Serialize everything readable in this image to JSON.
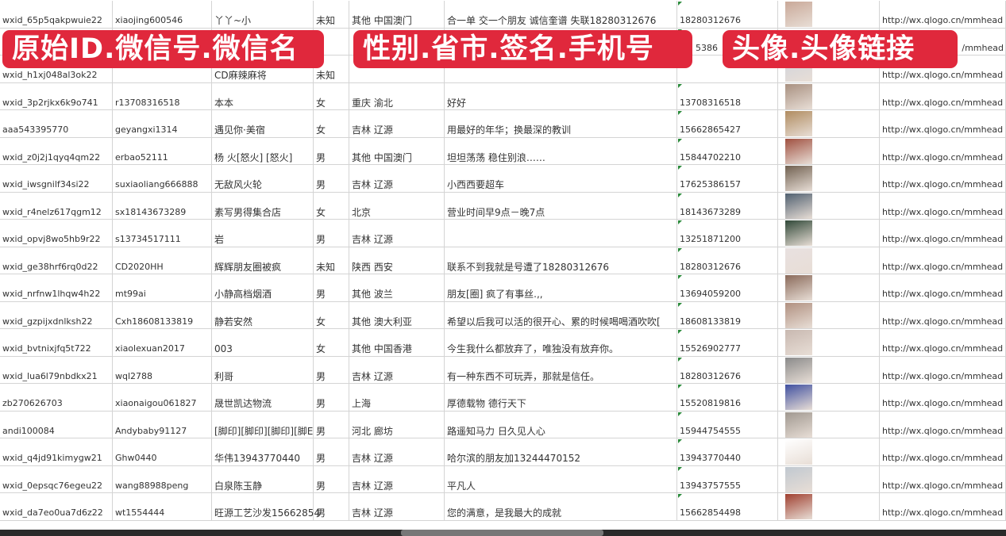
{
  "banners": [
    "原始ID.微信号.微信名",
    "性别.省市.签名.手机号",
    "头像.头像链接"
  ],
  "colors": {
    "banner": "#e0283c",
    "grid": "#d4d4d4",
    "marker": "#2a8a3a"
  },
  "rows": [
    [
      "wxid_65p5qakpwuie22",
      "xiaojing600546",
      "丫丫~小",
      "未知",
      "其他 中国澳门",
      "合一单 交一个朋友 诚信奎谱 失联18280312676",
      "18280312676",
      "http://wx.qlogo.cn/mmhead"
    ],
    [
      "",
      "",
      "",
      "",
      "",
      "",
      "5386",
      "/mmhead"
    ],
    [
      "wxid_h1xj048al3ok22",
      "",
      "CD麻辣麻将",
      "未知",
      "",
      "",
      "",
      "http://wx.qlogo.cn/mmhead"
    ],
    [
      "wxid_3p2rjkx6k9o741",
      "r13708316518",
      "本本",
      "女",
      "重庆 渝北",
      "好好",
      "13708316518",
      "http://wx.qlogo.cn/mmhead"
    ],
    [
      "aaa543395770",
      "geyangxi1314",
      "遇见你·美宿",
      "女",
      "吉林 辽源",
      "用最好的年华；换最深的教训",
      "15662865427",
      "http://wx.qlogo.cn/mmhead"
    ],
    [
      "wxid_z0j2j1qyq4qm22",
      "erbao52111",
      "杨 火[怒火] [怒火]",
      "男",
      "其他 中国澳门",
      "坦坦荡荡 稳住别浪……",
      "15844702210",
      "http://wx.qlogo.cn/mmhead"
    ],
    [
      "wxid_iwsgnilf34si22",
      "suxiaoliang666888",
      "无敌风火轮",
      "男",
      "吉林 辽源",
      "小西西要超车",
      "17625386157",
      "http://wx.qlogo.cn/mmhead"
    ],
    [
      "wxid_r4nelz617qgm12",
      "sx18143673289",
      "素写男得集合店",
      "女",
      "北京",
      "营业时间早9点－晚7点",
      "18143673289",
      "http://wx.qlogo.cn/mmhead"
    ],
    [
      "wxid_opvj8wo5hb9r22",
      "s13734517111",
      "岩",
      "男",
      "吉林 辽源",
      "",
      "13251871200",
      "http://wx.qlogo.cn/mmhead"
    ],
    [
      "wxid_ge38hrf6rq0d22",
      "CD2020HH",
      "辉辉朋友圈被疯",
      "未知",
      "陕西 西安",
      "联系不到我就是号遭了18280312676",
      "18280312676",
      "http://wx.qlogo.cn/mmhead"
    ],
    [
      "wxid_nrfnw1lhqw4h22",
      "mt99ai",
      "小静高档烟酒",
      "男",
      "其他 波兰",
      "朋友[圈] 疯了有事丝.,,",
      "13694059200",
      "http://wx.qlogo.cn/mmhead"
    ],
    [
      "wxid_gzpijxdnlksh22",
      "Cxh18608133819",
      "静若安然",
      "女",
      "其他 澳大利亚",
      "希望以后我可以活的很开心、累的时候喝喝酒吹吹[",
      "18608133819",
      "http://wx.qlogo.cn/mmhead"
    ],
    [
      "wxid_bvtnixjfq5t722",
      "xiaolexuan2017",
      "003",
      "女",
      "其他 中国香港",
      "今生我什么都放弃了，唯独没有放弃你。",
      "15526902777",
      "http://wx.qlogo.cn/mmhead"
    ],
    [
      "wxid_lua6l79nbdkx21",
      "wql2788",
      "利哥",
      "男",
      "吉林 辽源",
      "有一种东西不可玩弄，那就是信任。",
      "18280312676",
      "http://wx.qlogo.cn/mmhead"
    ],
    [
      "zb270626703",
      "xiaonaigou061827",
      "晟世凯达物流",
      "男",
      "上海",
      "厚德载物 德行天下",
      "15520819816",
      "http://wx.qlogo.cn/mmhead"
    ],
    [
      "andi100084",
      "Andybaby91127",
      "[脚印][脚印][脚印][脚E",
      "男",
      "河北 廊坊",
      "路遥知马力 日久见人心",
      "15944754555",
      "http://wx.qlogo.cn/mmhead"
    ],
    [
      "wxid_q4jd91kimygw21",
      "Ghw0440",
      "华伟13943770440",
      "男",
      "吉林 辽源",
      "哈尔滨的朋友加13244470152",
      "13943770440",
      "http://wx.qlogo.cn/mmhead"
    ],
    [
      "wxid_0epsqc76egeu22",
      "wang88988peng",
      "白泉陈玉静",
      "男",
      "吉林 辽源",
      "平凡人",
      "13943757555",
      "http://wx.qlogo.cn/mmhead"
    ],
    [
      "wxid_da7eo0ua7d6z22",
      "wt1554444",
      "旺源工艺沙发15662854",
      "男",
      "吉林 辽源",
      "您的满意，是我最大的成就",
      "15662854498",
      "http://wx.qlogo.cn/mmhead"
    ]
  ],
  "avatar_colors": [
    "#c9a898",
    "#8a9ac0",
    "#cfd3dc",
    "#a89080",
    "#b08c60",
    "#a05040",
    "#706050",
    "#506070",
    "#304838",
    "#e8e0e0",
    "#8a6a5a",
    "#b09080",
    "#c8b8b0",
    "#8a8a8a",
    "#4050a0",
    "#a09890",
    "#ffffff",
    "#c0c8d0",
    "#a04030"
  ]
}
